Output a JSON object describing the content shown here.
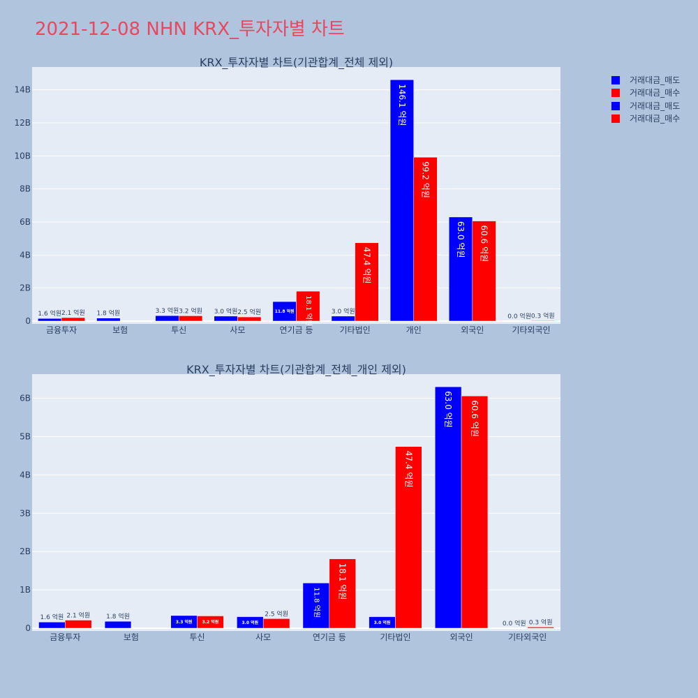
{
  "title": "2021-12-08 NHN KRX_투자자별 차트",
  "colors": {
    "sell": "#0000ff",
    "buy": "#ff0000",
    "plot_bg": "#e5ecf6",
    "page_bg": "#b0c4de",
    "title": "#e8485f"
  },
  "legend": {
    "placement": "top-right",
    "items": [
      {
        "label": "거래대금_매도",
        "color": "#0000ff"
      },
      {
        "label": "거래대금_매수",
        "color": "#ff0000"
      },
      {
        "label": "거래대금_매도",
        "color": "#0000ff"
      },
      {
        "label": "거래대금_매수",
        "color": "#ff0000"
      }
    ]
  },
  "chart_data": [
    {
      "type": "bar",
      "title": "KRX_투자자별 차트(기관합계_전체 제외)",
      "categories": [
        "금융투자",
        "보험",
        "투신",
        "사모",
        "연기금 등",
        "기타법인",
        "개인",
        "외국인",
        "기타외국인"
      ],
      "series": [
        {
          "name": "거래대금_매도",
          "values": [
            0.16,
            0.18,
            0.33,
            0.3,
            1.18,
            0.3,
            14.61,
            6.3,
            0.0
          ],
          "labels": [
            "1.6 억원",
            "1.8 억원",
            "3.3 억원",
            "3.0 억원",
            "11.8 억원",
            "3.0 억원",
            "146.1 억원",
            "63.0 억원",
            "0.0 억원"
          ]
        },
        {
          "name": "거래대금_매수",
          "values": [
            0.21,
            0.0,
            0.32,
            0.25,
            1.81,
            4.74,
            9.92,
            6.06,
            0.03
          ],
          "labels": [
            "2.1 억원",
            "",
            "3.2 억원",
            "2.5 억원",
            "18.1 억원",
            "47.4 억원",
            "99.2 억원",
            "60.6 억원",
            "0.3 억원"
          ]
        }
      ],
      "yticks": [
        "0",
        "2B",
        "4B",
        "6B",
        "8B",
        "10B",
        "12B",
        "14B"
      ],
      "ytick_values": [
        0,
        2,
        4,
        6,
        8,
        10,
        12,
        14
      ],
      "ylim": [
        0,
        15.38
      ],
      "grid": true
    },
    {
      "type": "bar",
      "title": "KRX_투자자별 차트(기관합계_전체_개인 제외)",
      "categories": [
        "금융투자",
        "보험",
        "투신",
        "사모",
        "연기금 등",
        "기타법인",
        "외국인",
        "기타외국인"
      ],
      "series": [
        {
          "name": "거래대금_매도",
          "values": [
            0.16,
            0.18,
            0.33,
            0.3,
            1.18,
            0.3,
            6.3,
            0.0
          ],
          "labels": [
            "1.6 억원",
            "1.8 억원",
            "3.3 억원",
            "3.0 억원",
            "11.8 억원",
            "3.0 억원",
            "63.0 억원",
            "0.0 억원"
          ]
        },
        {
          "name": "거래대금_매수",
          "values": [
            0.21,
            0.0,
            0.32,
            0.25,
            1.81,
            4.74,
            6.06,
            0.03
          ],
          "labels": [
            "2.1 억원",
            "",
            "3.2 억원",
            "2.5 억원",
            "18.1 억원",
            "47.4 억원",
            "60.6 억원",
            "0.3 억원"
          ]
        }
      ],
      "yticks": [
        "0",
        "1B",
        "2B",
        "3B",
        "4B",
        "5B",
        "6B"
      ],
      "ytick_values": [
        0,
        1,
        2,
        3,
        4,
        5,
        6
      ],
      "ylim": [
        0,
        6.63
      ],
      "grid": true
    }
  ]
}
